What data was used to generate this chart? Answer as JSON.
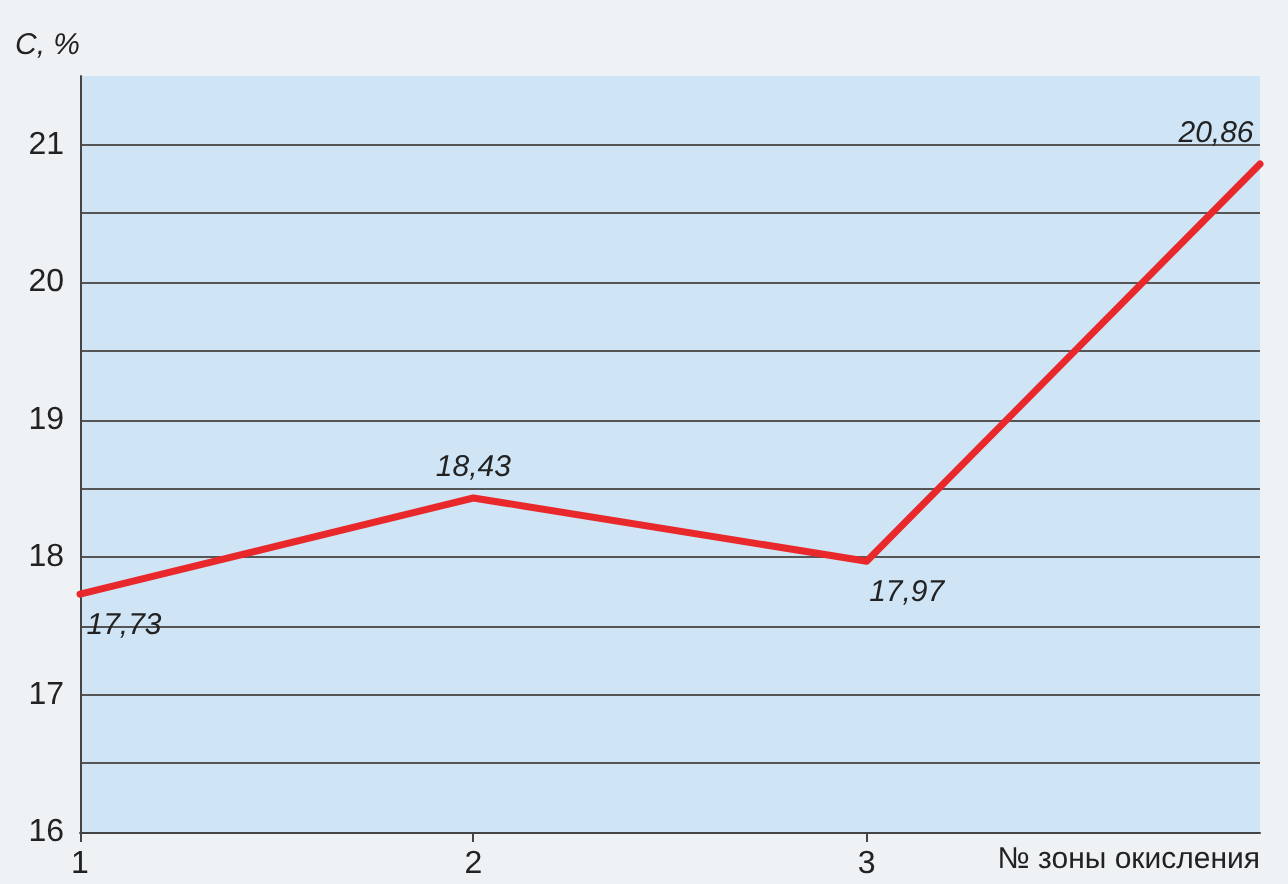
{
  "chart_data": {
    "type": "line",
    "xlabel": "№ зоны окисления",
    "ylabel": "C, %",
    "x": [
      1,
      2,
      3,
      4
    ],
    "series": [
      {
        "color": "#e8282b",
        "values": [
          17.73,
          18.43,
          17.97,
          20.86
        ],
        "value_labels": [
          "17,73",
          "18,43",
          "17,97",
          "20,86"
        ]
      }
    ],
    "xlim": [
      1,
      4
    ],
    "xticks": [
      1,
      2,
      3
    ],
    "ylim": [
      16,
      21.5
    ],
    "yticks": [
      16,
      {
        "value": 16.5,
        "label": null
      },
      17,
      {
        "value": 17.5,
        "label": null
      },
      18,
      {
        "value": 18.5,
        "label": null
      },
      19,
      {
        "value": 19.5,
        "label": null
      },
      20,
      {
        "value": 20.5,
        "label": null
      },
      21
    ],
    "grid": "y",
    "marker": "none",
    "line_style": "solid"
  }
}
